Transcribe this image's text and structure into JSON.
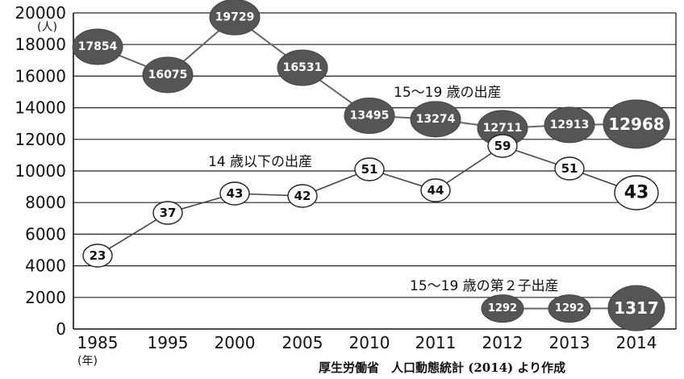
{
  "chart_data": {
    "type": "line",
    "categories": [
      "1985",
      "1995",
      "2000",
      "2005",
      "2010",
      "2011",
      "2012",
      "2013",
      "2014"
    ],
    "xlabel": "(年)",
    "ylabel": "(人)",
    "ylim": [
      0,
      20000
    ],
    "yticks": [
      "0",
      "2000",
      "4000",
      "6000",
      "8000",
      "10000",
      "12000",
      "14000",
      "16000",
      "18000",
      "20000"
    ],
    "grid": true,
    "series": [
      {
        "name": "15～19 歳の出産",
        "values": [
          17854,
          16075,
          19729,
          16531,
          13495,
          13274,
          12711,
          12913,
          12968
        ],
        "labels": [
          "17854",
          "16075",
          "19729",
          "16531",
          "13495",
          "13274",
          "12711",
          "12913",
          "12968"
        ]
      },
      {
        "name": "14 歳以下の出産",
        "values": [
          23,
          37,
          43,
          42,
          51,
          44,
          59,
          51,
          43
        ],
        "labels": [
          "23",
          "37",
          "43",
          "42",
          "51",
          "44",
          "59",
          "51",
          "43"
        ]
      },
      {
        "name": "15～19 歳の第２子出産",
        "values": [
          null,
          null,
          null,
          null,
          null,
          null,
          1292,
          1292,
          1317
        ],
        "labels": [
          "",
          "",
          "",
          "",
          "",
          "",
          "1292",
          "1292",
          "1317"
        ]
      }
    ],
    "source": "厚生労働省　人口動態統計 (2014) より作成"
  }
}
